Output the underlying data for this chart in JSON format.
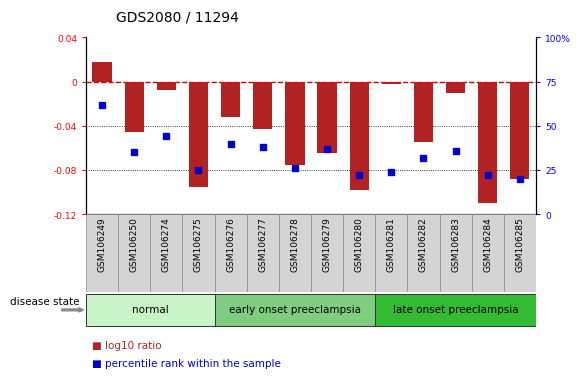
{
  "title": "GDS2080 / 11294",
  "samples": [
    "GSM106249",
    "GSM106250",
    "GSM106274",
    "GSM106275",
    "GSM106276",
    "GSM106277",
    "GSM106278",
    "GSM106279",
    "GSM106280",
    "GSM106281",
    "GSM106282",
    "GSM106283",
    "GSM106284",
    "GSM106285"
  ],
  "log10_ratio": [
    0.018,
    -0.046,
    -0.008,
    -0.095,
    -0.032,
    -0.043,
    -0.075,
    -0.065,
    -0.098,
    -0.002,
    -0.055,
    -0.01,
    -0.11,
    -0.088
  ],
  "percentile_rank": [
    62,
    35,
    44,
    25,
    40,
    38,
    26,
    37,
    22,
    24,
    32,
    36,
    22,
    20
  ],
  "groups": [
    {
      "label": "normal",
      "start": 0,
      "end": 4,
      "color": "#c8f5c8"
    },
    {
      "label": "early onset preeclampsia",
      "start": 4,
      "end": 9,
      "color": "#7fce7f"
    },
    {
      "label": "late onset preeclampsia",
      "start": 9,
      "end": 14,
      "color": "#33bb33"
    }
  ],
  "ylim_left": [
    -0.12,
    0.04
  ],
  "ylim_right": [
    0,
    100
  ],
  "bar_color": "#b22222",
  "dot_color": "#0000cc",
  "zero_line_color": "#cc0000",
  "grid_color": "#000000",
  "background_color": "#ffffff",
  "title_fontsize": 10,
  "tick_fontsize": 6.5,
  "label_fontsize": 7.5,
  "legend_fontsize": 7.5,
  "yticks_left": [
    -0.12,
    -0.08,
    -0.04,
    0,
    0.04
  ],
  "ytick_labels_left": [
    "-0.12",
    "-0.08",
    "-0.04",
    "0",
    "0.04"
  ],
  "yticks_right": [
    0,
    25,
    50,
    75,
    100
  ],
  "ytick_labels_right": [
    "0",
    "25",
    "50",
    "75",
    "100%"
  ]
}
